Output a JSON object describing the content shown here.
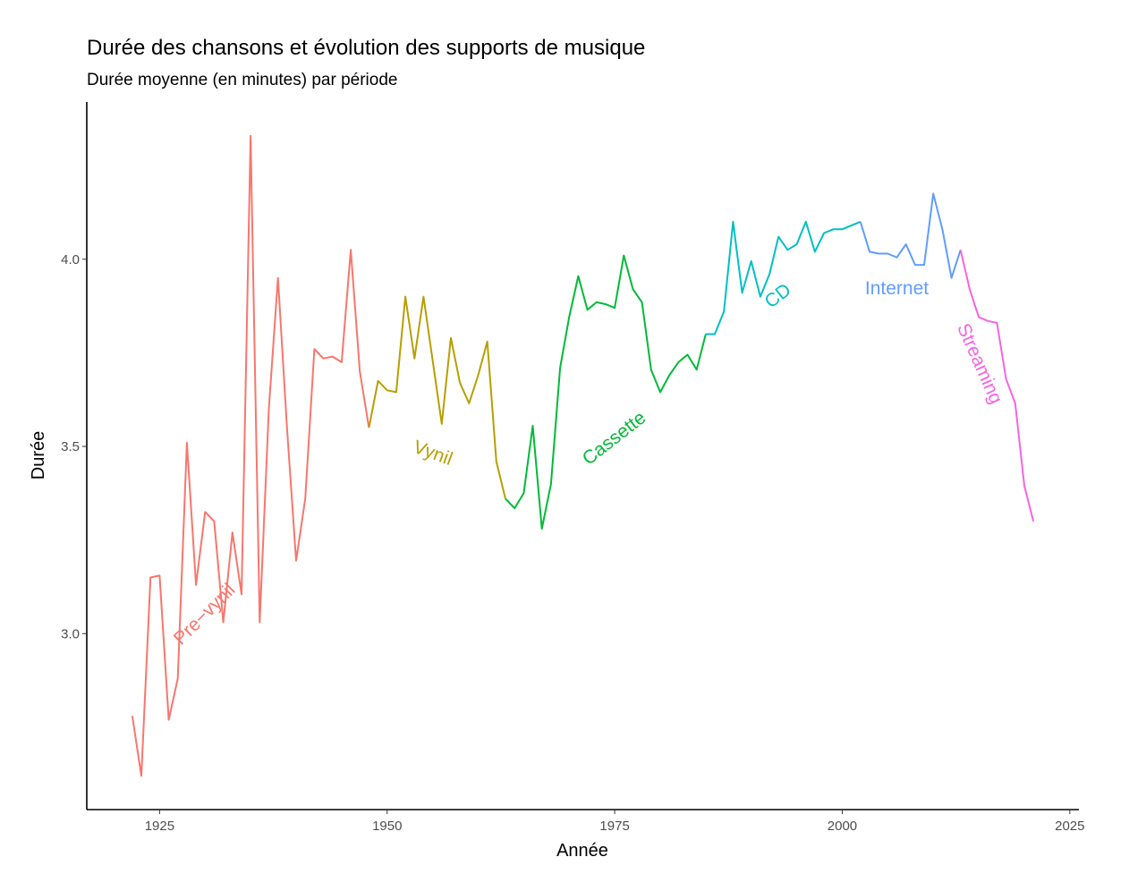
{
  "chart_data": {
    "type": "line",
    "title": "Durée des chansons et évolution des supports de musique",
    "subtitle": "Durée moyenne (en minutes) par période",
    "xlabel": "Année",
    "ylabel": "Durée",
    "xlim": [
      1917,
      2026
    ],
    "ylim": [
      2.53,
      4.42
    ],
    "x_ticks": [
      1925,
      1950,
      1975,
      2000,
      2025
    ],
    "y_ticks": [
      3.0,
      3.5,
      4.0
    ],
    "y_tick_labels": [
      "3.0",
      "3.5",
      "4.0"
    ],
    "grid": false,
    "legend": "none",
    "series": [
      {
        "name": "Pre−vynil",
        "color": "#F8766D",
        "label_at": [
          1930,
          3.05
        ],
        "label_angle": -45,
        "x": [
          1922,
          1923,
          1924,
          1925,
          1926,
          1927,
          1928,
          1929,
          1930,
          1931,
          1932,
          1933,
          1934,
          1935,
          1936,
          1937,
          1938,
          1939,
          1940,
          1941,
          1942,
          1943,
          1944,
          1945,
          1946,
          1947,
          1948
        ],
        "y": [
          2.78,
          2.62,
          3.15,
          3.155,
          2.77,
          2.88,
          3.51,
          3.13,
          3.325,
          3.3,
          3.03,
          3.27,
          3.105,
          4.33,
          3.03,
          3.6,
          3.95,
          3.55,
          3.195,
          3.36,
          3.76,
          3.735,
          3.74,
          3.725,
          4.025,
          3.7,
          3.55
        ]
      },
      {
        "name": "Vynil",
        "color": "#B79F00",
        "label_at": [
          1955,
          3.48
        ],
        "label_angle": 20,
        "x": [
          1948,
          1949,
          1950,
          1951,
          1952,
          1953,
          1954,
          1955,
          1956,
          1957,
          1958,
          1959,
          1960,
          1961,
          1962,
          1963
        ],
        "y": [
          3.55,
          3.675,
          3.65,
          3.645,
          3.9,
          3.735,
          3.9,
          3.73,
          3.56,
          3.79,
          3.67,
          3.615,
          3.69,
          3.78,
          3.46,
          3.36
        ]
      },
      {
        "name": "Cassette",
        "color": "#00BA38",
        "label_at": [
          1975,
          3.52
        ],
        "label_angle": -38,
        "x": [
          1963,
          1964,
          1965,
          1966,
          1967,
          1968,
          1969,
          1970,
          1971,
          1972,
          1973,
          1974,
          1975,
          1976,
          1977,
          1978,
          1979,
          1980,
          1981,
          1982,
          1983,
          1984,
          1985
        ],
        "y": [
          3.36,
          3.335,
          3.375,
          3.555,
          3.28,
          3.4,
          3.71,
          3.845,
          3.955,
          3.865,
          3.885,
          3.88,
          3.87,
          4.01,
          3.92,
          3.885,
          3.705,
          3.645,
          3.69,
          3.725,
          3.745,
          3.705,
          3.8
        ]
      },
      {
        "name": "CD",
        "color": "#00BFC4",
        "label_at": [
          1993,
          3.9
        ],
        "label_angle": -38,
        "x": [
          1985,
          1986,
          1987,
          1988,
          1989,
          1990,
          1991,
          1992,
          1993,
          1994,
          1995,
          1996,
          1997,
          1998,
          1999,
          2000,
          2001,
          2002
        ],
        "y": [
          3.8,
          3.8,
          3.86,
          4.1,
          3.91,
          3.995,
          3.9,
          3.96,
          4.06,
          4.025,
          4.04,
          4.1,
          4.02,
          4.07,
          4.08,
          4.08,
          4.09,
          4.1
        ]
      },
      {
        "name": "Internet",
        "color": "#619CFF",
        "label_at": [
          2006,
          3.92
        ],
        "label_angle": 0,
        "x": [
          2002,
          2003,
          2004,
          2005,
          2006,
          2007,
          2008,
          2009,
          2010,
          2011,
          2012,
          2013
        ],
        "y": [
          4.1,
          4.02,
          4.015,
          4.015,
          4.005,
          4.04,
          3.985,
          3.985,
          4.175,
          4.08,
          3.95,
          4.025
        ]
      },
      {
        "name": "Streaming",
        "color": "#F564E3",
        "label_at": [
          2015,
          3.72
        ],
        "label_angle": 66,
        "x": [
          2013,
          2014,
          2015,
          2016,
          2017,
          2018,
          2019,
          2020,
          2021
        ],
        "y": [
          4.025,
          3.92,
          3.845,
          3.835,
          3.83,
          3.68,
          3.615,
          3.395,
          3.3
        ]
      }
    ]
  }
}
